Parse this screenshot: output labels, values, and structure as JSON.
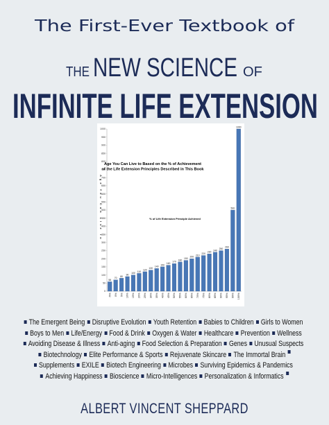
{
  "header": {
    "kicker": "The First-Ever Textbook of",
    "subtitle_prefix": "THE",
    "subtitle": "NEW SCIENCE",
    "subtitle_suffix": "OF",
    "title": "INFINITE LIFE EXTENSION"
  },
  "chart_data": {
    "type": "bar",
    "title": "Age You Can Live to Based on the % of Achievement of the Life Extension Principles Described in This Book",
    "y_label": "Age You Can Live to",
    "x_label": "% of Life Extension Principle Achieved",
    "categories": [
      "-5%",
      "0%",
      "5%",
      "10%",
      "15%",
      "20%",
      "25%",
      "30%",
      "35%",
      "40%",
      "45%",
      "50%",
      "55%",
      "60%",
      "65%",
      "70%",
      "75%",
      "80%",
      "85%",
      "90%",
      "95%",
      "99%",
      "100%"
    ],
    "values": [
      58,
      70,
      80,
      90,
      100,
      110,
      120,
      130,
      140,
      150,
      160,
      170,
      180,
      190,
      200,
      210,
      220,
      230,
      240,
      250,
      260,
      500,
      1000
    ],
    "color": "#4877b6",
    "ylim": [
      0,
      1000
    ],
    "yticks": [
      0,
      50,
      100,
      150,
      200,
      250,
      300,
      350,
      400,
      450,
      500,
      550,
      600,
      650,
      700,
      750,
      800,
      850,
      900,
      950,
      1000
    ],
    "grid": false
  },
  "topics": [
    [
      "The Emergent Being",
      "Disruptive Evolution",
      "Youth Retention",
      "Babies to Children",
      "Girls to Women"
    ],
    [
      "Boys to Men",
      "Life/Energy",
      "Food & Drink",
      "Oxygen & Water",
      "Healthcare",
      "Prevention",
      "Wellness"
    ],
    [
      "Avoiding Disease & Illness",
      "Anti-aging",
      "Food Selection & Preparation",
      "Genes",
      "Unusual Suspects"
    ],
    [
      "Biotechnology",
      "Elite Performance & Sports",
      "Rejuvenate Skincare",
      "The Immortal Brain"
    ],
    [
      "Supplements",
      "EXILE",
      "Biotech Engineering",
      "Microbes",
      "Surviving Epidemics & Pandemics"
    ],
    [
      "Achieving Happiness",
      "Bioscience",
      "Micro-Intelligences",
      "Personalization & Informatics"
    ]
  ],
  "author": "ALBERT VINCENT SHEPPARD"
}
